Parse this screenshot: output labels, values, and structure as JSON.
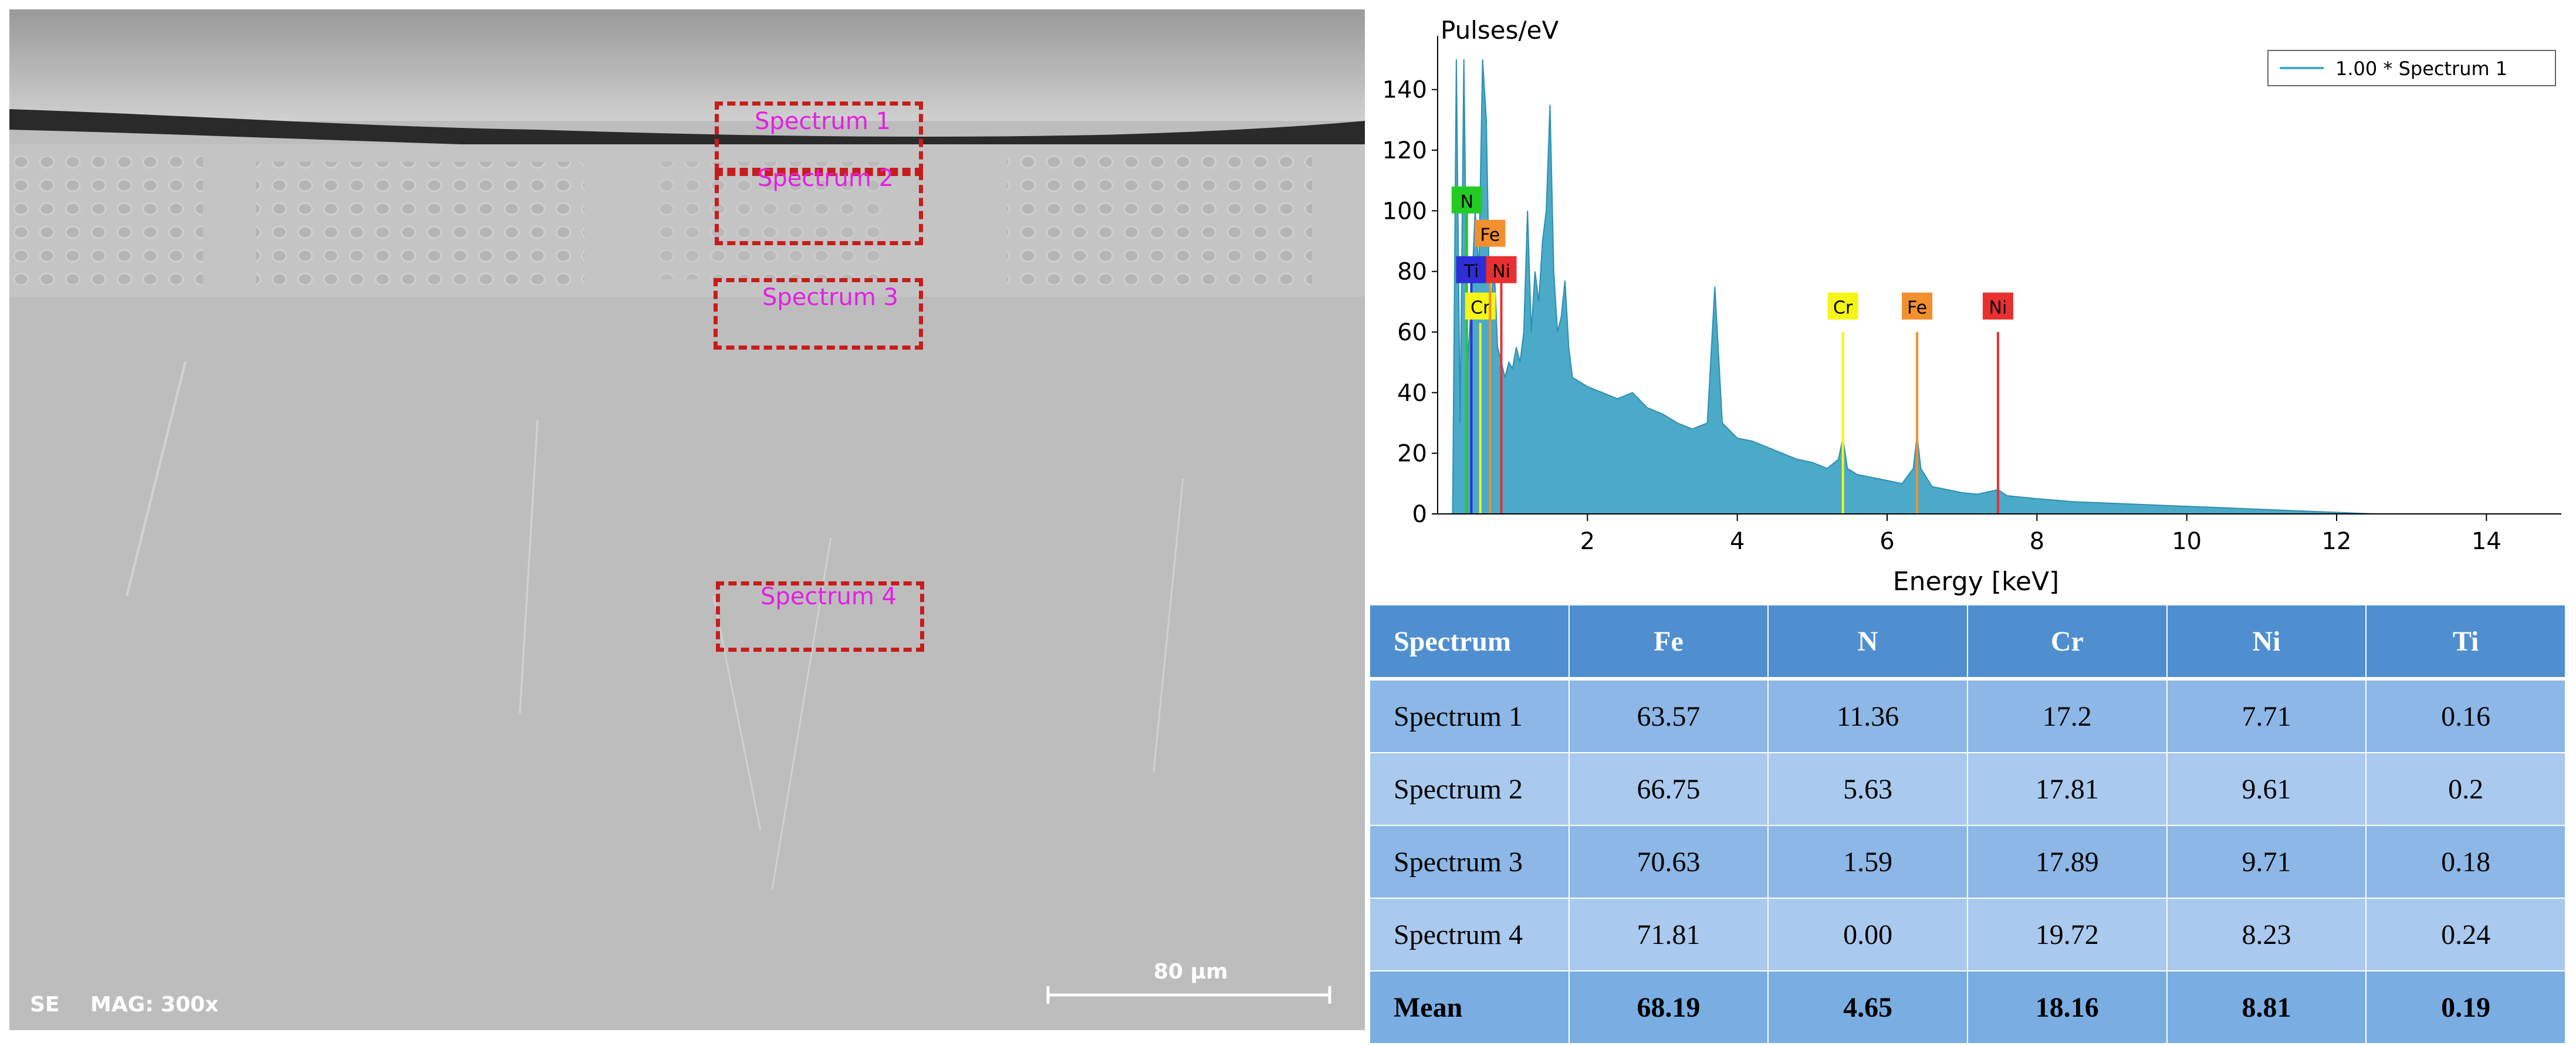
{
  "sem": {
    "detector": "SE",
    "magnification": "MAG: 300x",
    "scale_bar": "80 µm",
    "spectrum_labels": [
      "Spectrum 1",
      "Spectrum 2",
      "Spectrum 3",
      "Spectrum 4"
    ]
  },
  "chart_data": {
    "type": "area",
    "title": "",
    "ylabel": "Pulses/eV",
    "xlabel": "Energy [keV]",
    "xlim": [
      0,
      15
    ],
    "ylim": [
      0,
      150
    ],
    "xticks": [
      2,
      4,
      6,
      8,
      10,
      12,
      14
    ],
    "yticks": [
      0,
      20,
      40,
      60,
      80,
      100,
      120,
      140
    ],
    "legend": {
      "label": "1.00 * Spectrum 1",
      "position": "top-right"
    },
    "series_color": "#4aaac8",
    "spectrum": [
      [
        0.2,
        0
      ],
      [
        0.25,
        150
      ],
      [
        0.3,
        30
      ],
      [
        0.35,
        150
      ],
      [
        0.4,
        50
      ],
      [
        0.45,
        70
      ],
      [
        0.5,
        100
      ],
      [
        0.55,
        80
      ],
      [
        0.6,
        150
      ],
      [
        0.65,
        130
      ],
      [
        0.7,
        60
      ],
      [
        0.75,
        85
      ],
      [
        0.8,
        55
      ],
      [
        0.85,
        50
      ],
      [
        0.9,
        45
      ],
      [
        0.95,
        50
      ],
      [
        1.0,
        48
      ],
      [
        1.05,
        55
      ],
      [
        1.1,
        50
      ],
      [
        1.15,
        60
      ],
      [
        1.2,
        100
      ],
      [
        1.25,
        60
      ],
      [
        1.3,
        80
      ],
      [
        1.35,
        70
      ],
      [
        1.4,
        90
      ],
      [
        1.45,
        100
      ],
      [
        1.5,
        135
      ],
      [
        1.55,
        80
      ],
      [
        1.6,
        60
      ],
      [
        1.65,
        65
      ],
      [
        1.7,
        77
      ],
      [
        1.75,
        55
      ],
      [
        1.8,
        45
      ],
      [
        2.0,
        42
      ],
      [
        2.2,
        40
      ],
      [
        2.4,
        38
      ],
      [
        2.6,
        40
      ],
      [
        2.8,
        35
      ],
      [
        3.0,
        33
      ],
      [
        3.2,
        30
      ],
      [
        3.4,
        28
      ],
      [
        3.6,
        30
      ],
      [
        3.7,
        75
      ],
      [
        3.8,
        30
      ],
      [
        4.0,
        25
      ],
      [
        4.2,
        24
      ],
      [
        4.4,
        22
      ],
      [
        4.6,
        20
      ],
      [
        4.8,
        18
      ],
      [
        5.0,
        17
      ],
      [
        5.2,
        15
      ],
      [
        5.35,
        18
      ],
      [
        5.41,
        25
      ],
      [
        5.47,
        15
      ],
      [
        5.6,
        13
      ],
      [
        5.8,
        12
      ],
      [
        6.0,
        11
      ],
      [
        6.2,
        10
      ],
      [
        6.35,
        15
      ],
      [
        6.4,
        26
      ],
      [
        6.45,
        15
      ],
      [
        6.6,
        9
      ],
      [
        6.8,
        8
      ],
      [
        7.0,
        7
      ],
      [
        7.2,
        6.5
      ],
      [
        7.48,
        8
      ],
      [
        7.6,
        6
      ],
      [
        8.0,
        5
      ],
      [
        8.5,
        4
      ],
      [
        9.0,
        3.5
      ],
      [
        9.5,
        3
      ],
      [
        10.0,
        2.5
      ],
      [
        10.5,
        2
      ],
      [
        11.0,
        1.5
      ],
      [
        11.5,
        1
      ],
      [
        12.0,
        0.5
      ],
      [
        12.5,
        0
      ]
    ],
    "element_lines": [
      {
        "element": "N",
        "energy": 0.39,
        "height": 100,
        "color": "#22cc22",
        "label_y": 103
      },
      {
        "element": "Ti",
        "energy": 0.45,
        "height": 83,
        "color": "#2e2ed8",
        "label_y": 80
      },
      {
        "element": "Cr",
        "energy": 0.57,
        "height": 63,
        "color": "#f5f516",
        "label_y": 68
      },
      {
        "element": "Fe",
        "energy": 0.7,
        "height": 85,
        "color": "#f2902e",
        "label_y": 92
      },
      {
        "element": "Ni",
        "energy": 0.85,
        "height": 80,
        "color": "#e83030",
        "label_y": 80
      },
      {
        "element": "Cr",
        "energy": 5.41,
        "height": 60,
        "color": "#f5f516",
        "label_y": 68
      },
      {
        "element": "Fe",
        "energy": 6.4,
        "height": 60,
        "color": "#f2902e",
        "label_y": 68
      },
      {
        "element": "Ni",
        "energy": 7.48,
        "height": 60,
        "color": "#e83030",
        "label_y": 68
      }
    ]
  },
  "table": {
    "headers": [
      "Spectrum",
      "Fe",
      "N",
      "Cr",
      "Ni",
      "Ti"
    ],
    "rows": [
      [
        "Spectrum 1",
        "63.57",
        "11.36",
        "17.2",
        "7.71",
        "0.16"
      ],
      [
        "Spectrum 2",
        "66.75",
        "5.63",
        "17.81",
        "9.61",
        "0.2"
      ],
      [
        "Spectrum 3",
        "70.63",
        "1.59",
        "17.89",
        "9.71",
        "0.18"
      ],
      [
        "Spectrum 4",
        "71.81",
        "0.00",
        "19.72",
        "8.23",
        "0.24"
      ]
    ],
    "mean": [
      "Mean",
      "68.19",
      "4.65",
      "18.16",
      "8.81",
      "0.19"
    ]
  }
}
